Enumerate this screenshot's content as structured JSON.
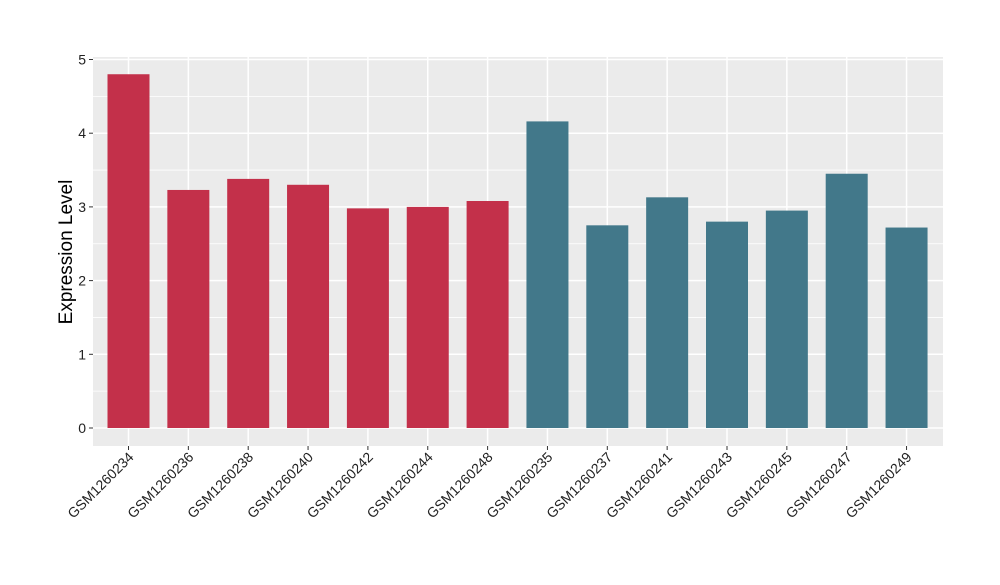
{
  "chart_data": {
    "type": "bar",
    "ylabel": "Expression Level",
    "xlabel": "",
    "ylim": [
      0,
      5
    ],
    "y_ticks": [
      0,
      1,
      2,
      3,
      4,
      5
    ],
    "grid": true,
    "legend": "none",
    "categories": [
      "GSM1260234",
      "GSM1260236",
      "GSM1260238",
      "GSM1260240",
      "GSM1260242",
      "GSM1260244",
      "GSM1260248",
      "GSM1260235",
      "GSM1260237",
      "GSM1260241",
      "GSM1260243",
      "GSM1260245",
      "GSM1260247",
      "GSM1260249"
    ],
    "values": [
      4.8,
      3.23,
      3.38,
      3.3,
      2.98,
      3.0,
      3.08,
      4.16,
      2.75,
      3.13,
      2.8,
      2.95,
      3.45,
      2.72
    ],
    "group_colors": [
      "#c3304a",
      "#c3304a",
      "#c3304a",
      "#c3304a",
      "#c3304a",
      "#c3304a",
      "#c3304a",
      "#42788a",
      "#42788a",
      "#42788a",
      "#42788a",
      "#42788a",
      "#42788a",
      "#42788a"
    ],
    "panel_background": "#ebebeb",
    "grid_color": "#ffffff"
  }
}
